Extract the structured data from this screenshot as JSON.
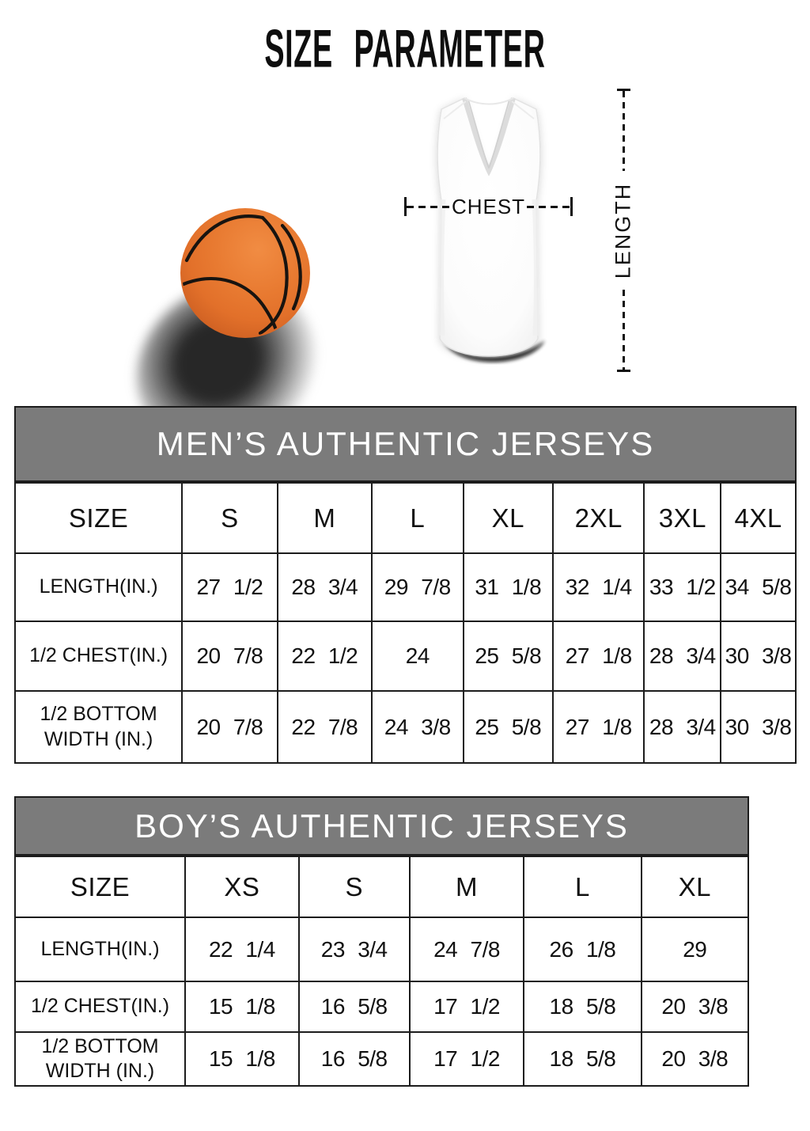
{
  "page": {
    "title": "SIZE PARAMETER"
  },
  "diagram": {
    "chest_label": "CHEST",
    "length_label": "LENGTH",
    "icons": {
      "basketball": "basketball-icon",
      "jersey": "jersey-icon"
    }
  },
  "colors": {
    "band_background": "#7b7b7b",
    "band_text": "#ffffff",
    "table_border": "#1c1c1c",
    "basketball_orange": "#e2702a",
    "text": "#151515"
  },
  "tables": {
    "men": {
      "title": "MEN’S AUTHENTIC JERSEYS",
      "size_header": "SIZE",
      "columns": [
        "S",
        "M",
        "L",
        "XL",
        "2XL",
        "3XL",
        "4XL"
      ],
      "rows": [
        {
          "label": "LENGTH(IN.)",
          "values": [
            "27 1/2",
            "28 3/4",
            "29 7/8",
            "31 1/8",
            "32 1/4",
            "33 1/2",
            "34 5/8"
          ]
        },
        {
          "label": "1/2 CHEST(IN.)",
          "values": [
            "20 7/8",
            "22 1/2",
            "24",
            "25 5/8",
            "27 1/8",
            "28 3/4",
            "30 3/8"
          ]
        },
        {
          "label": "1/2 BOTTOM WIDTH (IN.)",
          "values": [
            "20 7/8",
            "22 7/8",
            "24 3/8",
            "25 5/8",
            "27 1/8",
            "28 3/4",
            "30 3/8"
          ]
        }
      ]
    },
    "boys": {
      "title": "BOY’S AUTHENTIC JERSEYS",
      "size_header": "SIZE",
      "columns": [
        "XS",
        "S",
        "M",
        "L",
        "XL"
      ],
      "rows": [
        {
          "label": "LENGTH(IN.)",
          "values": [
            "22 1/4",
            "23 3/4",
            "24 7/8",
            "26 1/8",
            "29"
          ]
        },
        {
          "label": "1/2 CHEST(IN.)",
          "values": [
            "15 1/8",
            "16 5/8",
            "17 1/2",
            "18 5/8",
            "20 3/8"
          ]
        },
        {
          "label": "1/2 BOTTOM WIDTH (IN.)",
          "values": [
            "15 1/8",
            "16 5/8",
            "17 1/2",
            "18 5/8",
            "20 3/8"
          ]
        }
      ]
    }
  }
}
